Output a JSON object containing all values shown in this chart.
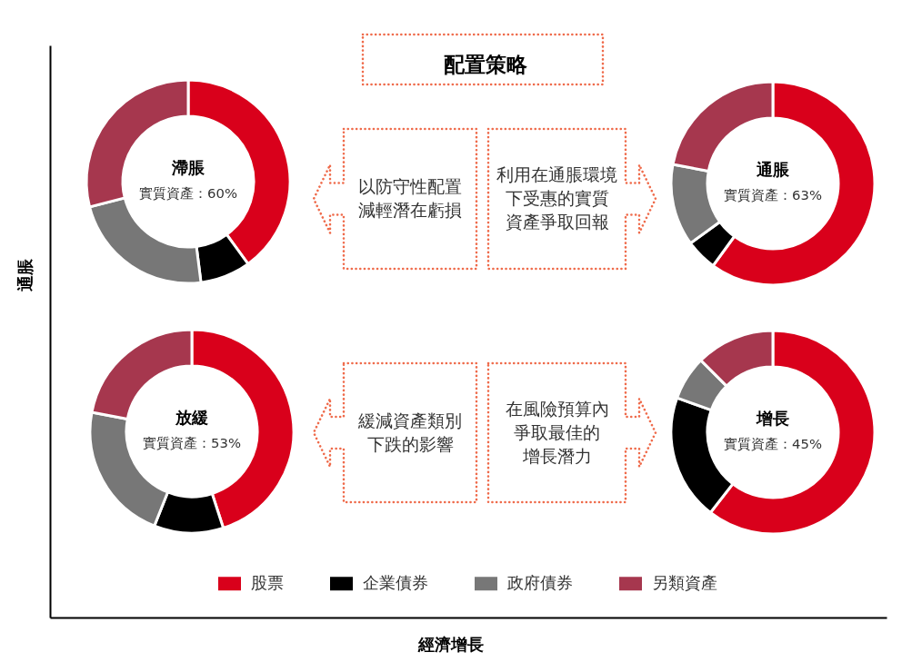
{
  "chart_data": [
    {
      "type": "other",
      "title": "配置策略",
      "xlabel": "經濟增長",
      "ylabel": "通脹"
    },
    {
      "type": "donut",
      "title": "滯脹",
      "subtitle": "實質資產：60%",
      "categories": [
        "股票",
        "企業債券",
        "政府債券",
        "另類資產"
      ],
      "values": [
        40,
        8,
        23,
        29
      ],
      "colors": [
        "#d9001b",
        "#000000",
        "#777777",
        "#a6374e"
      ],
      "annotations": [
        "以防守性配置減輕潛在虧損"
      ],
      "legend": "bottom"
    },
    {
      "type": "donut",
      "title": "通脹",
      "subtitle": "實質資產：63%",
      "values": [
        60,
        5,
        13,
        22
      ],
      "colors": [
        "#d9001b",
        "#000000",
        "#777777",
        "#a6374e"
      ],
      "annotations": [
        "利用在通脹環境下受惠的實質資產爭取回報"
      ]
    },
    {
      "type": "donut",
      "title": "放緩",
      "subtitle": "實質資產：53%",
      "values": [
        45,
        11,
        22,
        22
      ],
      "colors": [
        "#d9001b",
        "#000000",
        "#777777",
        "#a6374e"
      ],
      "annotations": [
        "緩減資產類別下跌的影響"
      ]
    },
    {
      "type": "donut",
      "title": "增長",
      "subtitle": "實質資產：45%",
      "values": [
        60.5,
        20,
        7,
        12.5
      ],
      "colors": [
        "#d9001b",
        "#000000",
        "#777777",
        "#a6374e"
      ],
      "annotations": [
        "在風險預算內爭取最佳的增長潛力"
      ]
    }
  ]
}
